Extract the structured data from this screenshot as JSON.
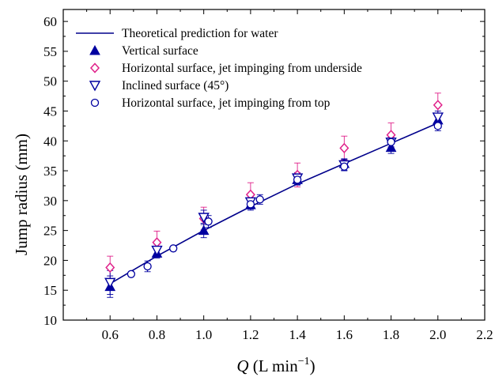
{
  "chart_data": {
    "type": "scatter",
    "ylabel": "Jump radius (mm)",
    "xlabel": {
      "symbol": "Q",
      "unit_prefix": " (L min",
      "unit_exp": "−1",
      "unit_suffix": ")"
    },
    "xlim": [
      0.4,
      2.2
    ],
    "ylim": [
      10,
      62
    ],
    "x_ticks": [
      0.6,
      0.8,
      1.0,
      1.2,
      1.4,
      1.6,
      1.8,
      2.0,
      2.2
    ],
    "x_tick_labels": [
      "0.6",
      "0.8",
      "1.0",
      "1.2",
      "1.4",
      "1.6",
      "1.8",
      "2.0",
      "2.2"
    ],
    "y_ticks": [
      10,
      15,
      20,
      25,
      30,
      35,
      40,
      45,
      50,
      55,
      60
    ],
    "y_tick_labels": [
      "10",
      "15",
      "20",
      "25",
      "30",
      "35",
      "40",
      "45",
      "50",
      "55",
      "60"
    ],
    "grid": false,
    "legend_position": "top-left",
    "series": [
      {
        "name": "Theoretical prediction for water",
        "kind": "line",
        "color": "#00008b",
        "x": [
          0.6,
          0.8,
          1.0,
          1.2,
          1.4,
          1.6,
          1.8,
          2.0
        ],
        "y": [
          16.1,
          20.7,
          25.0,
          29.0,
          32.8,
          36.2,
          39.6,
          43.0
        ]
      },
      {
        "name": "Vertical surface",
        "kind": "points",
        "marker": "triangle-up-filled",
        "color": "#0000a0",
        "x": [
          0.6,
          0.8,
          1.0,
          1.2,
          1.4,
          1.6,
          1.8,
          2.0
        ],
        "y": [
          15.6,
          21.2,
          25.0,
          29.3,
          33.5,
          36.2,
          38.9,
          43.5
        ],
        "err": [
          1.8,
          0.8,
          1.2,
          0.9,
          0.9,
          0.8,
          1.0,
          0.8
        ]
      },
      {
        "name": "Horizontal surface, jet impinging from underside",
        "kind": "points",
        "marker": "diamond-open",
        "color": "#e0218a",
        "x": [
          0.6,
          0.8,
          1.0,
          1.2,
          1.4,
          1.6,
          1.8,
          2.0
        ],
        "y": [
          18.8,
          23.0,
          27.0,
          31.0,
          34.3,
          38.8,
          41.0,
          46.0
        ],
        "err": [
          1.9,
          1.9,
          1.9,
          2.0,
          2.0,
          2.0,
          2.0,
          2.0
        ]
      },
      {
        "name": "Inclined surface (45°)",
        "kind": "points",
        "marker": "triangle-down-open",
        "color": "#0000a0",
        "x": [
          0.6,
          0.8,
          1.0,
          1.2,
          1.4,
          1.6,
          1.8,
          2.0
        ],
        "y": [
          16.3,
          21.7,
          27.2,
          29.8,
          33.8,
          36.0,
          39.8,
          44.0
        ],
        "err": [
          2.0,
          1.0,
          1.2,
          0.9,
          0.9,
          0.9,
          1.0,
          1.0
        ]
      },
      {
        "name": "Horizontal surface, jet impinging from top",
        "kind": "points",
        "marker": "circle-open",
        "color": "#0000a0",
        "x": [
          0.69,
          0.76,
          0.87,
          1.02,
          1.2,
          1.24,
          1.4,
          1.6,
          1.8,
          2.0
        ],
        "y": [
          17.7,
          19.0,
          22.0,
          26.5,
          29.4,
          30.2,
          33.5,
          35.7,
          39.8,
          42.5
        ],
        "err": [
          0,
          0.9,
          0,
          1.0,
          0.8,
          0.8,
          0.8,
          0.7,
          0.8,
          0.8
        ]
      }
    ]
  }
}
